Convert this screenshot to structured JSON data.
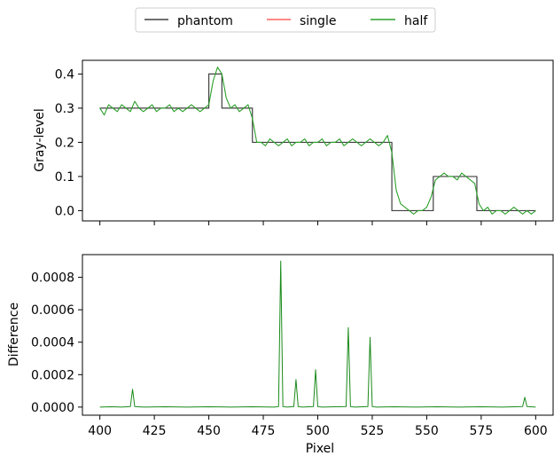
{
  "chart_data": [
    {
      "type": "line",
      "ylabel": "Gray-level",
      "xlim": [
        392,
        608
      ],
      "ylim": [
        -0.03,
        0.44
      ],
      "yticks": [
        0.0,
        0.1,
        0.2,
        0.3,
        0.4
      ],
      "ytick_labels": [
        "0.0",
        "0.1",
        "0.2",
        "0.3",
        "0.4"
      ],
      "legend": {
        "placement": "upper center, outside",
        "entries": [
          {
            "label": "phantom",
            "color": "#404040"
          },
          {
            "label": "single",
            "color": "#ff6060"
          },
          {
            "label": "half",
            "color": "#2ca02c"
          }
        ]
      },
      "series": [
        {
          "name": "phantom",
          "color": "#404040",
          "x": [
            400,
            450,
            450,
            456,
            456,
            470,
            470,
            534,
            534,
            553,
            553,
            573,
            573,
            600
          ],
          "y": [
            0.3,
            0.3,
            0.4,
            0.4,
            0.3,
            0.3,
            0.2,
            0.2,
            0.0,
            0.0,
            0.1,
            0.1,
            0.0,
            0.0
          ]
        },
        {
          "name": "half",
          "color": "#2ca02c",
          "x": [
            400,
            402,
            404,
            406,
            408,
            410,
            412,
            414,
            416,
            418,
            420,
            422,
            424,
            426,
            428,
            430,
            432,
            434,
            436,
            438,
            440,
            442,
            444,
            446,
            448,
            450,
            452,
            454,
            456,
            458,
            460,
            462,
            464,
            466,
            468,
            470,
            472,
            474,
            476,
            478,
            480,
            482,
            484,
            486,
            488,
            490,
            492,
            494,
            496,
            498,
            500,
            502,
            504,
            506,
            508,
            510,
            512,
            514,
            516,
            518,
            520,
            522,
            524,
            526,
            528,
            530,
            532,
            534,
            536,
            538,
            540,
            542,
            544,
            546,
            548,
            550,
            552,
            554,
            556,
            558,
            560,
            562,
            564,
            566,
            568,
            570,
            572,
            574,
            576,
            578,
            580,
            582,
            584,
            586,
            588,
            590,
            592,
            594,
            596,
            598,
            600
          ],
          "y": [
            0.3,
            0.28,
            0.31,
            0.3,
            0.29,
            0.31,
            0.3,
            0.29,
            0.32,
            0.3,
            0.29,
            0.3,
            0.31,
            0.29,
            0.3,
            0.3,
            0.31,
            0.29,
            0.3,
            0.29,
            0.3,
            0.31,
            0.3,
            0.29,
            0.3,
            0.31,
            0.38,
            0.42,
            0.4,
            0.33,
            0.3,
            0.31,
            0.29,
            0.3,
            0.31,
            0.27,
            0.2,
            0.2,
            0.19,
            0.21,
            0.2,
            0.19,
            0.2,
            0.21,
            0.19,
            0.2,
            0.2,
            0.21,
            0.19,
            0.2,
            0.2,
            0.21,
            0.19,
            0.2,
            0.2,
            0.21,
            0.19,
            0.2,
            0.21,
            0.2,
            0.19,
            0.2,
            0.21,
            0.2,
            0.19,
            0.2,
            0.22,
            0.17,
            0.06,
            0.02,
            0.01,
            0.0,
            -0.01,
            0.0,
            0.0,
            0.01,
            0.04,
            0.09,
            0.1,
            0.11,
            0.1,
            0.1,
            0.09,
            0.11,
            0.1,
            0.09,
            0.08,
            0.02,
            0.0,
            0.01,
            -0.01,
            0.0,
            0.0,
            -0.01,
            0.0,
            0.01,
            0.0,
            -0.01,
            0.0,
            -0.01,
            0.0
          ]
        }
      ]
    },
    {
      "type": "line",
      "xlabel": "Pixel",
      "ylabel": "Difference",
      "xlim": [
        392,
        608
      ],
      "ylim": [
        -5e-05,
        0.00094
      ],
      "xticks": [
        400,
        425,
        450,
        475,
        500,
        525,
        550,
        575,
        600
      ],
      "xtick_labels": [
        "400",
        "425",
        "450",
        "475",
        "500",
        "525",
        "550",
        "575",
        "600"
      ],
      "yticks": [
        0.0,
        0.0002,
        0.0004,
        0.0006,
        0.0008
      ],
      "ytick_labels": [
        "0.0000",
        "0.0002",
        "0.0004",
        "0.0006",
        "0.0008"
      ],
      "series": [
        {
          "color": "#1a8a1a",
          "x": [
            400,
            405,
            410,
            414,
            415,
            416,
            420,
            430,
            440,
            450,
            460,
            470,
            480,
            482,
            483,
            484,
            486,
            489,
            490,
            491,
            493,
            498,
            499,
            500,
            502,
            508,
            513,
            514,
            515,
            517,
            523,
            524,
            525,
            527,
            535,
            545,
            555,
            565,
            575,
            585,
            594,
            595,
            596,
            600
          ],
          "y": [
            0.0,
            2e-06,
            0.0,
            3e-06,
            0.00011,
            3e-06,
            0.0,
            2e-06,
            0.0,
            2e-06,
            0.0,
            2e-06,
            0.0,
            3e-06,
            0.0009,
            3e-06,
            0.0,
            3e-06,
            0.00017,
            3e-06,
            0.0,
            3e-06,
            0.00023,
            3e-06,
            0.0,
            2e-06,
            3e-06,
            0.00049,
            3e-06,
            0.0,
            3e-06,
            0.00043,
            3e-06,
            0.0,
            2e-06,
            0.0,
            2e-06,
            0.0,
            2e-06,
            0.0,
            3e-06,
            6e-05,
            3e-06,
            0.0
          ]
        }
      ]
    }
  ]
}
